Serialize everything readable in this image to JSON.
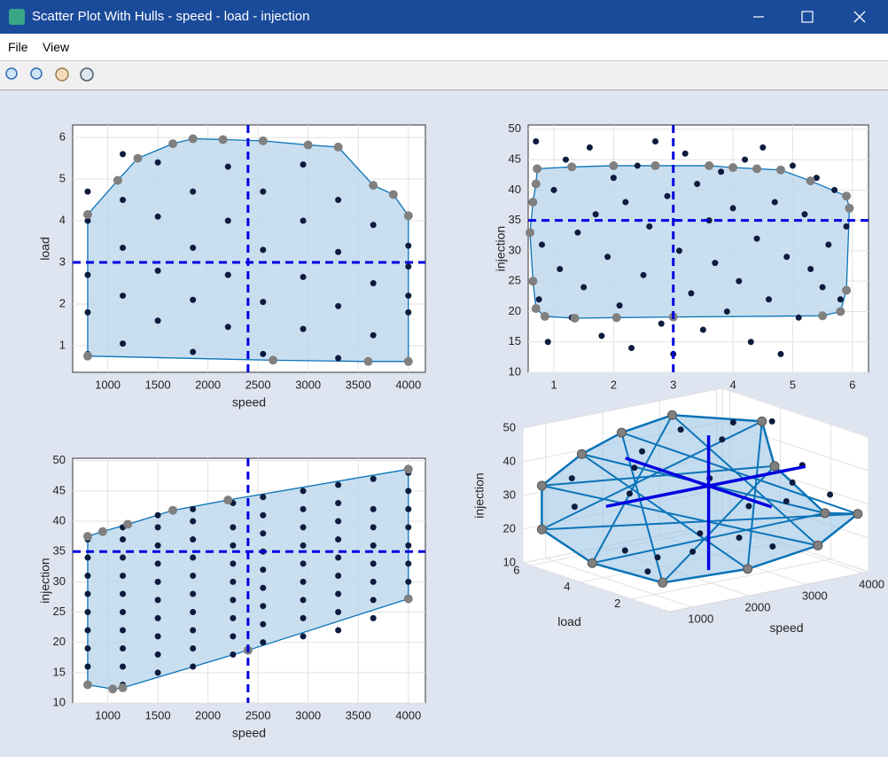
{
  "window": {
    "title": "Scatter Plot With Hulls - speed - load - injection"
  },
  "menu": [
    "File",
    "View"
  ],
  "chart_data": [
    {
      "type": "scatter",
      "xlabel": "speed",
      "ylabel": "load",
      "xlim": [
        650,
        4170
      ],
      "ylim": [
        0.36,
        6.3
      ],
      "xticks": [
        1000,
        1500,
        2000,
        2500,
        3000,
        3500,
        4000
      ],
      "yticks": [
        1,
        2,
        3,
        4,
        5,
        6
      ],
      "grid": true,
      "points": {
        "color": "#0d1b3e",
        "x": [
          800,
          800,
          800,
          800,
          800,
          1150,
          1150,
          1150,
          1150,
          1150,
          1500,
          1500,
          1500,
          1500,
          1850,
          1850,
          1850,
          1850,
          2200,
          2200,
          2200,
          2200,
          2550,
          2550,
          2550,
          2550,
          2950,
          2950,
          2950,
          2950,
          3300,
          3300,
          3300,
          3300,
          3650,
          3650,
          3650,
          3650,
          4000,
          4000,
          4000,
          4000,
          4000
        ],
        "y": [
          4.7,
          4.0,
          2.7,
          1.8,
          0.8,
          5.6,
          4.5,
          3.35,
          2.2,
          1.05,
          5.4,
          4.1,
          2.8,
          1.6,
          4.7,
          3.35,
          2.1,
          0.85,
          5.3,
          4.0,
          2.7,
          1.45,
          4.7,
          3.3,
          2.05,
          0.8,
          5.35,
          4.0,
          2.65,
          1.4,
          4.5,
          3.25,
          1.95,
          0.7,
          4.85,
          3.9,
          2.5,
          1.25,
          4.1,
          3.4,
          2.9,
          2.2,
          1.8
        ]
      },
      "hull": {
        "color": "#0a73b8",
        "x": [
          800,
          800,
          1100,
          1300,
          1650,
          1850,
          2150,
          2550,
          3000,
          3300,
          3650,
          3850,
          4000,
          4000,
          3600,
          2650
        ],
        "y": [
          0.75,
          4.15,
          4.97,
          5.5,
          5.85,
          5.97,
          5.95,
          5.92,
          5.82,
          5.77,
          4.85,
          4.63,
          4.12,
          0.62,
          0.62,
          0.65
        ]
      },
      "crosshair": {
        "x": 2400,
        "y": 3.0,
        "color": "#0000e0"
      }
    },
    {
      "type": "scatter",
      "xlabel": "load",
      "ylabel": "injection",
      "xlim": [
        0.57,
        6.27
      ],
      "ylim": [
        10,
        50.7
      ],
      "xticks": [
        1,
        2,
        3,
        4,
        5,
        6
      ],
      "yticks": [
        10,
        15,
        20,
        25,
        30,
        35,
        40,
        45,
        50
      ],
      "grid": true,
      "points": {
        "color": "#0d1b3e",
        "x": [
          0.7,
          0.75,
          0.8,
          0.9,
          1.0,
          1.1,
          1.2,
          1.3,
          1.4,
          1.5,
          1.6,
          1.7,
          1.8,
          1.9,
          2.0,
          2.1,
          2.2,
          2.3,
          2.4,
          2.5,
          2.6,
          2.7,
          2.8,
          2.9,
          3.0,
          3.1,
          3.2,
          3.3,
          3.4,
          3.5,
          3.6,
          3.7,
          3.8,
          3.9,
          4.0,
          4.1,
          4.2,
          4.3,
          4.4,
          4.5,
          4.6,
          4.7,
          4.8,
          4.9,
          5.0,
          5.1,
          5.2,
          5.3,
          5.4,
          5.5,
          5.6,
          5.7,
          5.8,
          5.9
        ],
        "y": [
          48,
          22,
          31,
          15,
          40,
          27,
          45,
          19,
          33,
          24,
          47,
          36,
          16,
          29,
          42,
          21,
          38,
          14,
          44,
          26,
          34,
          48,
          18,
          39,
          13,
          30,
          46,
          23,
          41,
          17,
          35,
          28,
          43,
          20,
          37,
          25,
          45,
          15,
          32,
          47,
          22,
          38,
          13,
          29,
          44,
          19,
          36,
          27,
          42,
          24,
          31,
          40,
          22,
          34
        ]
      },
      "hull": {
        "color": "#0a73b8",
        "x": [
          0.72,
          1.3,
          2.0,
          2.7,
          3.6,
          4.0,
          4.4,
          4.8,
          5.3,
          5.9,
          5.95,
          5.9,
          5.8,
          5.5,
          3.0,
          2.05,
          1.35,
          0.85,
          0.7,
          0.65,
          0.6,
          0.65,
          0.7
        ],
        "y": [
          43.5,
          43.8,
          44,
          44,
          44,
          43.7,
          43.5,
          43.3,
          41.5,
          39,
          37,
          23.5,
          20,
          19.3,
          19.1,
          19,
          18.9,
          19.2,
          20.5,
          25,
          33,
          38,
          41
        ]
      },
      "crosshair": {
        "x": 3,
        "y": 35,
        "color": "#0000e0"
      }
    },
    {
      "type": "scatter",
      "xlabel": "speed",
      "ylabel": "injection",
      "xlim": [
        650,
        4170
      ],
      "ylim": [
        10,
        50.4
      ],
      "xticks": [
        1000,
        1500,
        2000,
        2500,
        3000,
        3500,
        4000
      ],
      "yticks": [
        10,
        15,
        20,
        25,
        30,
        35,
        40,
        45,
        50
      ],
      "grid": true,
      "points": {
        "color": "#0d1b3e",
        "x": [
          800,
          800,
          800,
          800,
          800,
          800,
          800,
          800,
          800,
          1150,
          1150,
          1150,
          1150,
          1150,
          1150,
          1150,
          1150,
          1150,
          1150,
          1500,
          1500,
          1500,
          1500,
          1500,
          1500,
          1500,
          1500,
          1500,
          1500,
          1850,
          1850,
          1850,
          1850,
          1850,
          1850,
          1850,
          1850,
          1850,
          1850,
          2250,
          2250,
          2250,
          2250,
          2250,
          2250,
          2250,
          2250,
          2250,
          2550,
          2550,
          2550,
          2550,
          2550,
          2550,
          2550,
          2550,
          2550,
          2950,
          2950,
          2950,
          2950,
          2950,
          2950,
          2950,
          2950,
          2950,
          3300,
          3300,
          3300,
          3300,
          3300,
          3300,
          3300,
          3300,
          3300,
          3650,
          3650,
          3650,
          3650,
          3650,
          3650,
          3650,
          3650,
          4000,
          4000,
          4000,
          4000,
          4000,
          4000,
          4000,
          4000
        ],
        "y": [
          13,
          16,
          19,
          22,
          25,
          28,
          31,
          34,
          37,
          13,
          16,
          19,
          22,
          25,
          28,
          31,
          34,
          37,
          39,
          15,
          18,
          21,
          24,
          27,
          30,
          33,
          36,
          39,
          41,
          16,
          19,
          22,
          25,
          28,
          31,
          34,
          37,
          40,
          42,
          18,
          21,
          24,
          27,
          30,
          33,
          36,
          39,
          43,
          20,
          23,
          26,
          29,
          32,
          35,
          38,
          41,
          44,
          21,
          24,
          27,
          30,
          33,
          36,
          39,
          42,
          45,
          22,
          25,
          28,
          31,
          34,
          37,
          40,
          43,
          46,
          24,
          27,
          30,
          33,
          36,
          39,
          42,
          47,
          27,
          30,
          33,
          36,
          39,
          42,
          45,
          48
        ]
      },
      "hull": {
        "color": "#0a73b8",
        "x": [
          800,
          1050,
          1150,
          2400,
          4000,
          4000,
          2200,
          1650,
          1200,
          950,
          800
        ],
        "y": [
          13,
          12.3,
          12.5,
          18.7,
          27.2,
          48.6,
          43.5,
          41.8,
          39.5,
          38.3,
          37.5
        ]
      },
      "crosshair": {
        "x": 2400,
        "y": 35,
        "color": "#0000e0"
      }
    },
    {
      "type": "scatter3d",
      "xlabel": "speed",
      "ylabel": "load",
      "zlabel": "injection",
      "xlim": [
        600,
        4100
      ],
      "ylim": [
        0.5,
        6.3
      ],
      "zlim": [
        10,
        50
      ],
      "xticks": [
        1000,
        2000,
        3000,
        4000
      ],
      "yticks": [
        2,
        4,
        6
      ],
      "zticks": [
        10,
        20,
        30,
        40,
        50
      ],
      "grid": true,
      "points": {
        "color": "#0d1b3e",
        "x": [
          800,
          800,
          800,
          1150,
          1150,
          1500,
          1500,
          1850,
          1850,
          2250,
          2250,
          2550,
          2550,
          2950,
          2950,
          3300,
          3300,
          3650,
          3650,
          4000,
          4000,
          4000
        ],
        "y": [
          4.7,
          2.7,
          1.8,
          5.6,
          2.2,
          4.1,
          1.6,
          4.7,
          2.1,
          5.3,
          1.45,
          3.3,
          0.8,
          5.35,
          2.65,
          4.5,
          1.95,
          4.85,
          2.5,
          4.1,
          2.9,
          1.8
        ],
        "z": [
          30,
          22,
          18,
          35,
          20,
          33,
          22,
          38,
          25,
          40,
          24,
          36,
          22,
          44,
          28,
          42,
          30,
          45,
          33,
          46,
          36,
          30
        ]
      },
      "hull": {
        "color": "#0a73b8",
        "x": [
          800,
          800,
          800,
          1150,
          2200,
          3300,
          4000,
          4000,
          4000,
          4000,
          3000,
          2200,
          1500
        ],
        "y": [
          6,
          6,
          4,
          2,
          1,
          0.7,
          0.7,
          2,
          4,
          4.5,
          5.8,
          6,
          6
        ],
        "z": [
          33,
          20,
          15,
          13,
          16,
          20,
          27,
          24,
          33,
          45,
          47,
          44,
          40
        ]
      },
      "crosshair": {
        "x": 2400,
        "y": 3.0,
        "z": 35,
        "color": "#0000e0"
      }
    }
  ]
}
